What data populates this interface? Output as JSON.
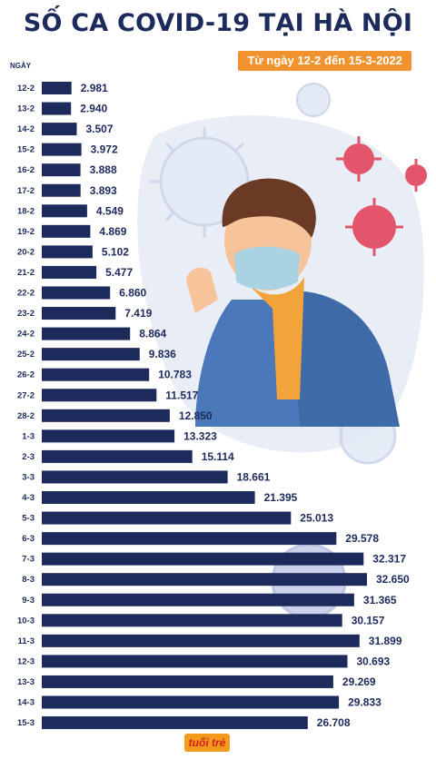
{
  "title": "SỐ CA COVID-19 TẠI HÀ NỘI",
  "subtitle": "Từ ngày 12-2 đến 15-3-2022",
  "axis_label": "NGÀY",
  "logo_text": "tuổi trẻ",
  "colors": {
    "bar": "#1d2a5c",
    "title": "#1d2a5c",
    "subtitle_bg": "#f0922d",
    "label_text": "#1d2a5c"
  },
  "chart_data": {
    "type": "bar",
    "orientation": "horizontal",
    "title": "SỐ CA COVID-19 TẠI HÀ NỘI",
    "subtitle": "Từ ngày 12-2 đến 15-3-2022",
    "ylabel": "NGÀY",
    "categories": [
      "12-2",
      "13-2",
      "14-2",
      "15-2",
      "16-2",
      "17-2",
      "18-2",
      "19-2",
      "20-2",
      "21-2",
      "22-2",
      "23-2",
      "24-2",
      "25-2",
      "26-2",
      "27-2",
      "28-2",
      "1-3",
      "2-3",
      "3-3",
      "4-3",
      "5-3",
      "6-3",
      "7-3",
      "8-3",
      "9-3",
      "10-3",
      "11-3",
      "12-3",
      "13-3",
      "14-3",
      "15-3"
    ],
    "values": [
      2981,
      2940,
      3507,
      3972,
      3888,
      3893,
      4549,
      4869,
      5102,
      5477,
      6860,
      7419,
      8864,
      9836,
      10783,
      11517,
      12850,
      13323,
      15114,
      18661,
      21395,
      25013,
      29578,
      32317,
      32650,
      31365,
      30157,
      31899,
      30693,
      29269,
      29833,
      26708
    ],
    "value_labels": [
      "2.981",
      "2.940",
      "3.507",
      "3.972",
      "3.888",
      "3.893",
      "4.549",
      "4.869",
      "5.102",
      "5.477",
      "6.860",
      "7.419",
      "8.864",
      "9.836",
      "10.783",
      "11.517",
      "12.850",
      "13.323",
      "15.114",
      "18.661",
      "21.395",
      "25.013",
      "29.578",
      "32.317",
      "32.650",
      "31.365",
      "30.157",
      "31.899",
      "30.693",
      "29.269",
      "29.833",
      "26.708"
    ]
  }
}
